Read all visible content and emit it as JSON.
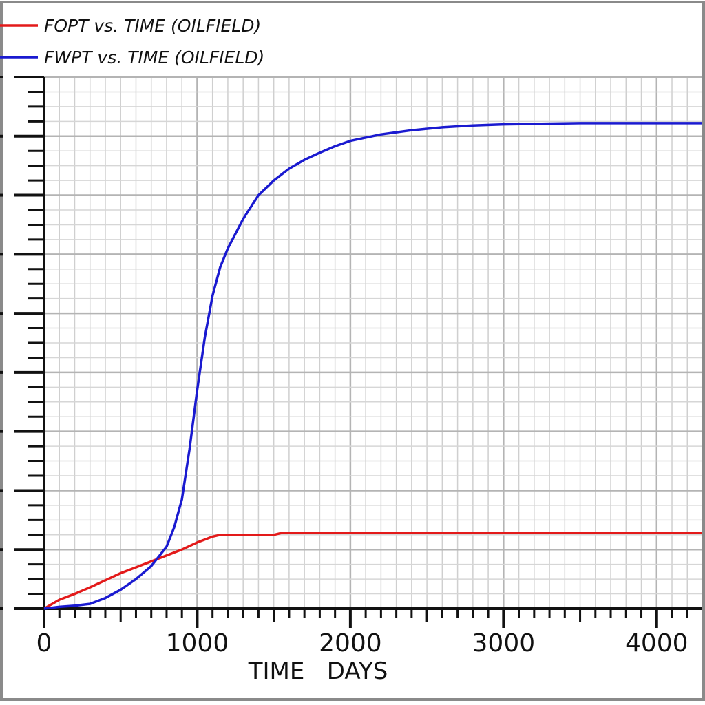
{
  "chart_data": {
    "type": "line",
    "xlabel": "TIME   DAYS",
    "x_ticks": [
      0,
      1000,
      2000,
      3000,
      4000
    ],
    "xlim": [
      0,
      4500
    ],
    "ylim": [
      0,
      9
    ],
    "grid": true,
    "legend_position": "top-left",
    "series": [
      {
        "name": "FOPT  vs.  TIME (OILFIELD)",
        "color": "#e31a1a",
        "x": [
          0,
          100,
          200,
          300,
          400,
          500,
          600,
          700,
          800,
          900,
          1000,
          1050,
          1100,
          1150,
          1300,
          1500,
          1550,
          2000,
          2500,
          3000,
          3500,
          4000,
          4500
        ],
        "y": [
          0,
          0.15,
          0.25,
          0.36,
          0.48,
          0.6,
          0.7,
          0.8,
          0.9,
          1.0,
          1.12,
          1.17,
          1.22,
          1.25,
          1.25,
          1.25,
          1.28,
          1.28,
          1.28,
          1.28,
          1.28,
          1.28,
          1.28
        ]
      },
      {
        "name": "FWPT  vs.  TIME (OILFIELD)",
        "color": "#1a1ad0",
        "x": [
          0,
          100,
          200,
          300,
          400,
          500,
          600,
          700,
          800,
          850,
          900,
          950,
          1000,
          1050,
          1100,
          1150,
          1200,
          1300,
          1400,
          1500,
          1600,
          1700,
          1800,
          1900,
          2000,
          2200,
          2400,
          2600,
          2800,
          3000,
          3500,
          4000,
          4500
        ],
        "y": [
          0,
          0.03,
          0.05,
          0.08,
          0.18,
          0.32,
          0.5,
          0.72,
          1.05,
          1.38,
          1.85,
          2.7,
          3.7,
          4.6,
          5.3,
          5.78,
          6.1,
          6.6,
          7.0,
          7.25,
          7.45,
          7.6,
          7.72,
          7.83,
          7.92,
          8.03,
          8.1,
          8.15,
          8.18,
          8.2,
          8.22,
          8.22,
          8.22
        ]
      }
    ]
  }
}
